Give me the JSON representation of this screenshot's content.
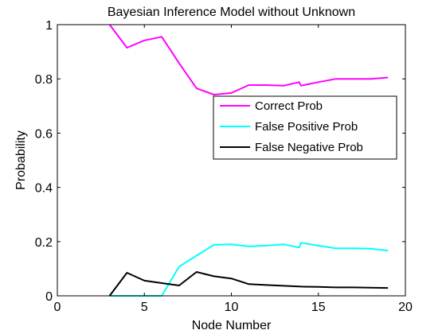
{
  "chart_data": {
    "type": "line",
    "title": "Bayesian Inference Model without Unknown",
    "xlabel": "Node Number",
    "ylabel": "Probability",
    "xlim": [
      0,
      20
    ],
    "ylim": [
      0,
      1
    ],
    "xticks": [
      0,
      5,
      10,
      15,
      20
    ],
    "xtick_labels": [
      "0",
      "5",
      "10",
      "15",
      "20"
    ],
    "yticks": [
      0,
      0.2,
      0.4,
      0.6,
      0.8,
      1
    ],
    "ytick_labels": [
      "0",
      "0.2",
      "0.4",
      "0.6",
      "0.8",
      "1"
    ],
    "grid": false,
    "legend_position": "right-center",
    "series": [
      {
        "name": "Correct Prob",
        "color": "#ff00ff",
        "points": [
          [
            3,
            1.0
          ],
          [
            4,
            0.915
          ],
          [
            5,
            0.942
          ],
          [
            6,
            0.955
          ],
          [
            7,
            0.858
          ],
          [
            8,
            0.765
          ],
          [
            9,
            0.742
          ],
          [
            10,
            0.748
          ],
          [
            11,
            0.777
          ],
          [
            12,
            0.777
          ],
          [
            13,
            0.775
          ],
          [
            13.9,
            0.788
          ],
          [
            14,
            0.775
          ],
          [
            15,
            0.788
          ],
          [
            16,
            0.8
          ],
          [
            17,
            0.8
          ],
          [
            18,
            0.8
          ],
          [
            19,
            0.805
          ]
        ]
      },
      {
        "name": "False Positive Prob",
        "color": "#00ffff",
        "points": [
          [
            3,
            0.0
          ],
          [
            4,
            0.0
          ],
          [
            5,
            0.0
          ],
          [
            6,
            0.0
          ],
          [
            7,
            0.108
          ],
          [
            8,
            0.148
          ],
          [
            9,
            0.188
          ],
          [
            10,
            0.19
          ],
          [
            11,
            0.182
          ],
          [
            12,
            0.185
          ],
          [
            13,
            0.19
          ],
          [
            13.9,
            0.178
          ],
          [
            14,
            0.196
          ],
          [
            15,
            0.185
          ],
          [
            16,
            0.175
          ],
          [
            17,
            0.175
          ],
          [
            18,
            0.174
          ],
          [
            19,
            0.167
          ]
        ]
      },
      {
        "name": "False Negative Prob",
        "color": "#000000",
        "points": [
          [
            3,
            0.0
          ],
          [
            4,
            0.085
          ],
          [
            5,
            0.056
          ],
          [
            6,
            0.047
          ],
          [
            7,
            0.038
          ],
          [
            8,
            0.088
          ],
          [
            9,
            0.072
          ],
          [
            10,
            0.064
          ],
          [
            11,
            0.043
          ],
          [
            12,
            0.04
          ],
          [
            13,
            0.037
          ],
          [
            14,
            0.034
          ],
          [
            15,
            0.033
          ],
          [
            16,
            0.031
          ],
          [
            17,
            0.031
          ],
          [
            18,
            0.03
          ],
          [
            19,
            0.029
          ]
        ]
      }
    ]
  }
}
